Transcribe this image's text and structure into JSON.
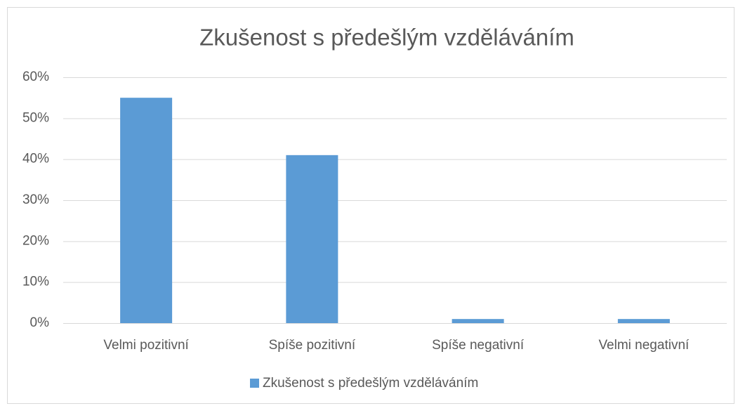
{
  "chart_data": {
    "type": "bar",
    "title": "Zkušenost s předešlým vzděláváním",
    "categories": [
      "Velmi pozitivní",
      "Spíše pozitivní",
      "Spíše negativní",
      "Velmi negativní"
    ],
    "series": [
      {
        "name": "Zkušenost s předešlým vzděláváním",
        "color": "#5b9bd5",
        "values": [
          55,
          41,
          1,
          1
        ]
      }
    ],
    "ylim": [
      0,
      60
    ],
    "yticks": [
      {
        "value": 0,
        "label": "0%"
      },
      {
        "value": 10,
        "label": "10%"
      },
      {
        "value": 20,
        "label": "20%"
      },
      {
        "value": 30,
        "label": "30%"
      },
      {
        "value": 40,
        "label": "40%"
      },
      {
        "value": 50,
        "label": "50%"
      },
      {
        "value": 60,
        "label": "60%"
      }
    ],
    "grid": true,
    "legend": "bottom"
  }
}
